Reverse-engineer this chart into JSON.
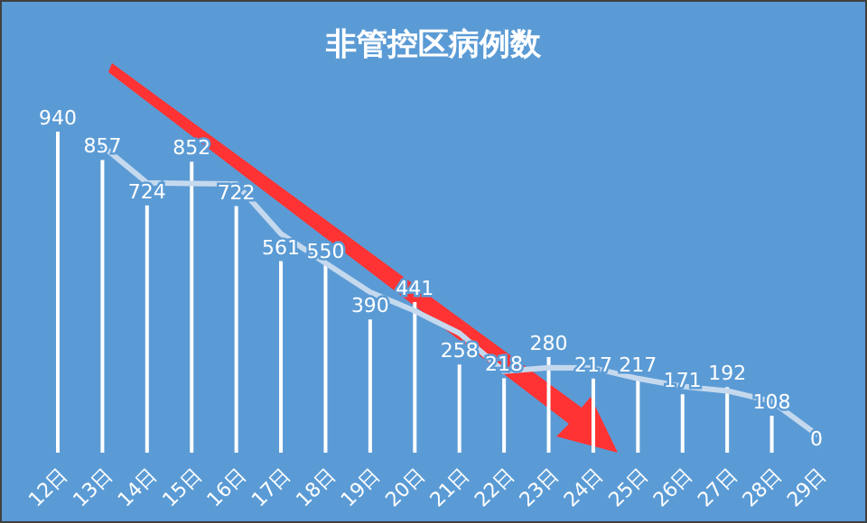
{
  "chart_data": {
    "type": "bar",
    "title": "非管控区病例数",
    "categories": [
      "12日",
      "13日",
      "14日",
      "15日",
      "16日",
      "17日",
      "18日",
      "19日",
      "20日",
      "21日",
      "22日",
      "23日",
      "24日",
      "25日",
      "26日",
      "27日",
      "28日",
      "29日"
    ],
    "series": [
      {
        "color": "#ffffff",
        "values": [
          940,
          857,
          724,
          852,
          722,
          561,
          550,
          390,
          441,
          258,
          218,
          280,
          217,
          217,
          171,
          192,
          108,
          0
        ],
        "value_labels": [
          "940",
          "857",
          "724",
          "852",
          "722",
          "561",
          "550",
          "390",
          "441",
          "258",
          "218",
          "280",
          "217",
          "217",
          "171",
          "192",
          "108",
          "0"
        ]
      },
      {
        "type": "line",
        "color": "#c5d9ee",
        "line_style": "solid",
        "values": [
          null,
          898,
          790,
          788,
          787,
          641,
          555,
          470,
          415,
          350,
          238,
          249,
          248,
          217,
          194,
          181,
          150,
          54
        ]
      }
    ]
  }
}
